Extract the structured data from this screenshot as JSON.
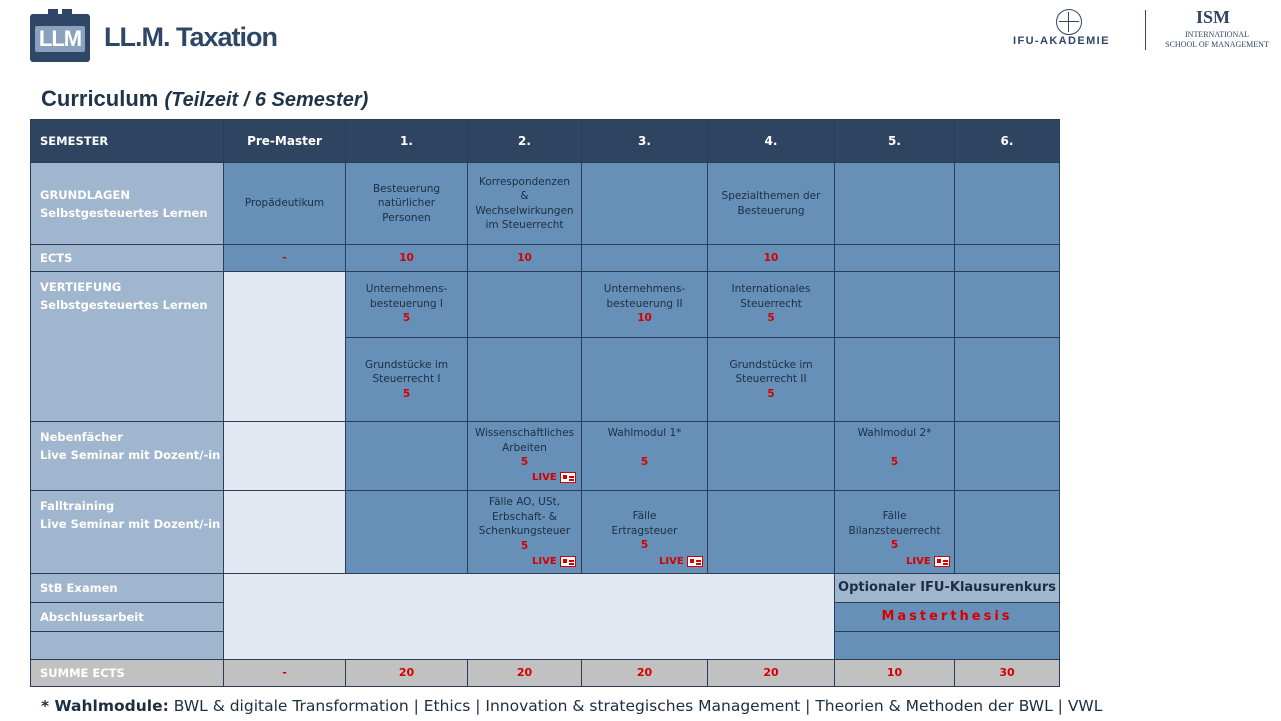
{
  "header": {
    "logo_text": "LLM",
    "brand": "LL.M. Taxation",
    "ifu": "IFU-AKADEMIE",
    "ism_big": "ISM",
    "ism_small_1": "INTERNATIONAL",
    "ism_small_2": "SCHOOL OF MANAGEMENT"
  },
  "title": {
    "main": "Curriculum",
    "sub": "(Teilzeit / 6 Semester)"
  },
  "table": {
    "headers": [
      "SEMESTER",
      "Pre-Master",
      "1.",
      "2.",
      "3.",
      "4.",
      "5.",
      "6."
    ],
    "labels": {
      "grundlagen_1": "GRUNDLAGEN",
      "grundlagen_2": "Selbstgesteuertes Lernen",
      "ects": "ECTS",
      "vertiefung_1": "VERTIEFUNG",
      "vertiefung_2": "Selbstgesteuertes Lernen",
      "neben_1": "Nebenfächer",
      "neben_2": "Live Seminar mit Dozent/-in",
      "fall_1": "Falltraining",
      "fall_2": "Live Seminar mit Dozent/-in",
      "stb": "StB Examen",
      "abschluss": "Abschlussarbeit",
      "summe": "SUMME ECTS"
    },
    "grundlagen": {
      "pre": "Propädeutikum",
      "s1": [
        "Besteuerung",
        "natürlicher",
        "Personen"
      ],
      "s2": [
        "Korrespondenzen",
        "&",
        "Wechselwirkungen",
        "im Steuerrecht"
      ],
      "s4": [
        "Spezialthemen der",
        "Besteuerung"
      ]
    },
    "ects": {
      "pre": "-",
      "s1": "10",
      "s2": "10",
      "s4": "10"
    },
    "vertiefung": {
      "a_s1": [
        "Unternehmens-",
        "besteuerung  I"
      ],
      "a_s1_ects": "5",
      "a_s3": [
        "Unternehmens-",
        "besteuerung  II"
      ],
      "a_s3_ects": "10",
      "a_s4": [
        "Internationales",
        "Steuerrecht"
      ],
      "a_s4_ects": "5",
      "b_s1": [
        "Grundstücke im",
        "Steuerrecht I"
      ],
      "b_s1_ects": "5",
      "b_s4": [
        "Grundstücke im",
        "Steuerrecht II"
      ],
      "b_s4_ects": "5"
    },
    "neben": {
      "s2": [
        "Wissenschaftliches",
        "Arbeiten"
      ],
      "s2_ects": "5",
      "s3": "Wahlmodul 1*",
      "s3_ects": "5",
      "s5": "Wahlmodul 2*",
      "s5_ects": "5"
    },
    "fall": {
      "s2": [
        "Fälle AO, USt,",
        "Erbschaft- &",
        "Schenkungsteuer"
      ],
      "s2_ects": "5",
      "s3": [
        "Fälle",
        "Ertragsteuer"
      ],
      "s3_ects": "5",
      "s5": [
        "Fälle",
        "Bilanzsteuerrecht"
      ],
      "s5_ects": "5"
    },
    "live_label": "LIVE",
    "optional": "Optionaler IFU-Klausurenkurs",
    "thesis": "Masterthesis",
    "summe": [
      "-",
      "20",
      "20",
      "20",
      "20",
      "10",
      "30"
    ]
  },
  "footnote": {
    "prefix": "* Wahlmodule:",
    "text": " BWL & digitale Transformation | Ethics | Innovation & strategisches Management | Theorien & Methoden der BWL | VWL"
  },
  "colors": {
    "header_dark": "#2e4460",
    "label_light": "#9fb6ce",
    "cell_mid": "#6790b8",
    "cell_light": "#e1e8f1",
    "sum_grey": "#c1c1c1",
    "accent_red": "#d40000"
  }
}
